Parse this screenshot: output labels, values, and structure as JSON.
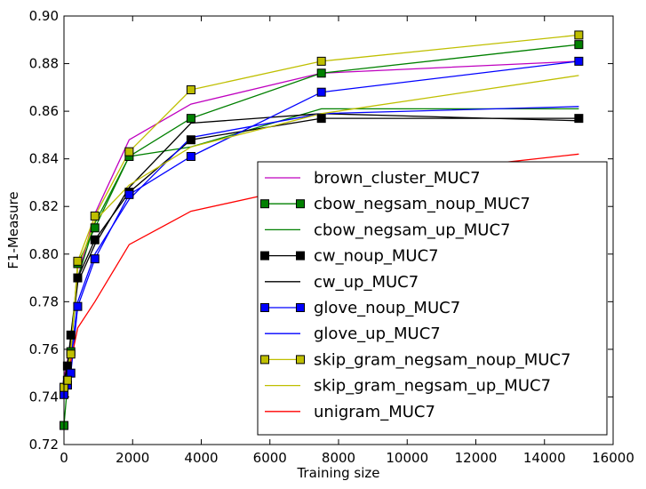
{
  "chart_data": {
    "type": "line",
    "xlabel": "Training size",
    "ylabel": "F1-Measure",
    "xlim": [
      0,
      16000
    ],
    "ylim": [
      0.72,
      0.9
    ],
    "xticks": [
      "0",
      "2000",
      "4000",
      "6000",
      "8000",
      "10000",
      "12000",
      "14000",
      "16000"
    ],
    "yticks": [
      "0.72",
      "0.74",
      "0.76",
      "0.78",
      "0.80",
      "0.82",
      "0.84",
      "0.86",
      "0.88",
      "0.90"
    ],
    "grid": false,
    "legend_position": "lower-right",
    "series": [
      {
        "name": "brown_cluster_MUC7",
        "color": "#bf00bf",
        "marker": "none",
        "x": [
          0,
          100,
          200,
          400,
          900,
          1900,
          3700,
          7500,
          15000
        ],
        "y": [
          0.748,
          0.755,
          0.763,
          0.79,
          0.817,
          0.848,
          0.863,
          0.876,
          0.881
        ]
      },
      {
        "name": "cbow_negsam_noup_MUC7",
        "color": "#008000",
        "marker": "square",
        "x": [
          0,
          100,
          200,
          400,
          900,
          1900,
          3700,
          7500,
          15000
        ],
        "y": [
          0.728,
          0.745,
          0.759,
          0.796,
          0.811,
          0.841,
          0.857,
          0.876,
          0.888
        ]
      },
      {
        "name": "cbow_negsam_up_MUC7",
        "color": "#008000",
        "marker": "none",
        "x": [
          0,
          100,
          200,
          400,
          900,
          1900,
          3700,
          7500,
          15000
        ],
        "y": [
          0.745,
          0.752,
          0.76,
          0.79,
          0.813,
          0.841,
          0.845,
          0.861,
          0.861
        ]
      },
      {
        "name": "cw_noup_MUC7",
        "color": "#000000",
        "marker": "square",
        "x": [
          0,
          100,
          200,
          400,
          900,
          1900,
          3700,
          7500,
          15000
        ],
        "y": [
          0.744,
          0.753,
          0.766,
          0.79,
          0.806,
          0.826,
          0.848,
          0.857,
          0.857
        ]
      },
      {
        "name": "cw_up_MUC7",
        "color": "#000000",
        "marker": "none",
        "x": [
          0,
          100,
          200,
          400,
          900,
          1900,
          3700,
          7500,
          15000
        ],
        "y": [
          0.746,
          0.754,
          0.764,
          0.788,
          0.804,
          0.828,
          0.855,
          0.859,
          0.856
        ]
      },
      {
        "name": "glove_noup_MUC7",
        "color": "#0000ff",
        "marker": "square",
        "x": [
          0,
          100,
          200,
          400,
          900,
          1900,
          3700,
          7500,
          15000
        ],
        "y": [
          0.741,
          0.745,
          0.75,
          0.778,
          0.798,
          0.825,
          0.841,
          0.868,
          0.881
        ]
      },
      {
        "name": "glove_up_MUC7",
        "color": "#0000ff",
        "marker": "none",
        "x": [
          0,
          100,
          200,
          400,
          900,
          1900,
          3700,
          7500,
          15000
        ],
        "y": [
          0.742,
          0.748,
          0.756,
          0.78,
          0.8,
          0.823,
          0.849,
          0.859,
          0.862
        ]
      },
      {
        "name": "skip_gram_negsam_noup_MUC7",
        "color": "#bfbf00",
        "marker": "square",
        "x": [
          0,
          100,
          200,
          400,
          900,
          1900,
          3700,
          7500,
          15000
        ],
        "y": [
          0.744,
          0.747,
          0.758,
          0.797,
          0.816,
          0.843,
          0.869,
          0.881,
          0.892
        ]
      },
      {
        "name": "skip_gram_negsam_up_MUC7",
        "color": "#bfbf00",
        "marker": "none",
        "x": [
          0,
          100,
          200,
          400,
          900,
          1900,
          3700,
          7500,
          15000
        ],
        "y": [
          0.743,
          0.75,
          0.76,
          0.794,
          0.814,
          0.829,
          0.845,
          0.859,
          0.875
        ]
      },
      {
        "name": "unigram_MUC7",
        "color": "#ff0000",
        "marker": "none",
        "x": [
          0,
          100,
          200,
          400,
          900,
          1900,
          3700,
          7500,
          15000
        ],
        "y": [
          0.741,
          0.745,
          0.755,
          0.769,
          0.78,
          0.804,
          0.818,
          0.83,
          0.842
        ]
      }
    ]
  }
}
